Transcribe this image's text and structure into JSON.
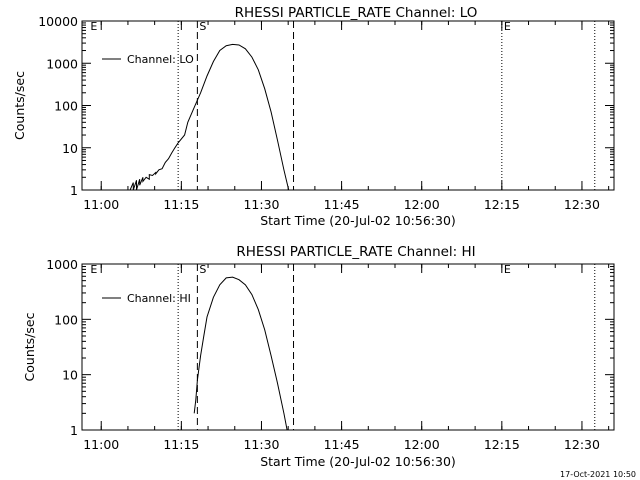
{
  "chart_data": [
    {
      "type": "line",
      "title": "RHESSI PARTICLE_RATE Channel: LO",
      "xlabel": "Start Time (20-Jul-02 10:56:30)",
      "ylabel": "Counts/sec",
      "yscale": "log",
      "ylim": [
        1,
        10000
      ],
      "xlim": [
        10.94,
        12.6
      ],
      "xticks": [
        11.0,
        11.25,
        11.5,
        11.75,
        12.0,
        12.25,
        12.5
      ],
      "xtick_labels": [
        "11:00",
        "11:15",
        "11:30",
        "11:45",
        "12:00",
        "12:15",
        "12:30"
      ],
      "yticks": [
        1,
        10,
        100,
        1000,
        10000
      ],
      "ytick_labels": [
        "1",
        "10",
        "100",
        "1000",
        "10000"
      ],
      "legend": "Channel: LO",
      "series": [
        {
          "name": "Channel: LO",
          "x": [
            11.09,
            11.1,
            11.1,
            11.11,
            11.11,
            11.12,
            11.12,
            11.13,
            11.13,
            11.14,
            11.15,
            11.15,
            11.16,
            11.17,
            11.17,
            11.18,
            11.19,
            11.2,
            11.21,
            11.22,
            11.23,
            11.24,
            11.26,
            11.27,
            11.29,
            11.31,
            11.33,
            11.35,
            11.37,
            11.39,
            11.41,
            11.43,
            11.45,
            11.47,
            11.49,
            11.51,
            11.53,
            11.55,
            11.57,
            11.585
          ],
          "y": [
            1,
            1.5,
            1,
            1.7,
            1,
            1.8,
            1.3,
            2.0,
            1.6,
            2.0,
            1.8,
            2.3,
            2.2,
            2.6,
            2.4,
            3.0,
            3.2,
            4.5,
            5.5,
            7.5,
            10,
            13,
            20,
            40,
            90,
            200,
            500,
            1100,
            2000,
            2600,
            2800,
            2700,
            2200,
            1400,
            700,
            250,
            70,
            15,
            3,
            1
          ]
        }
      ],
      "vlines_dotted": [
        11.24,
        12.25,
        12.54
      ],
      "vlines_dashed": [
        11.3,
        11.6
      ],
      "markers": [
        {
          "label": "E",
          "x": 10.96
        },
        {
          "label": "S",
          "x": 11.3
        },
        {
          "label": "E",
          "x": 12.25
        }
      ]
    },
    {
      "type": "line",
      "title": "RHESSI PARTICLE_RATE Channel: HI",
      "xlabel": "Start Time (20-Jul-02 10:56:30)",
      "ylabel": "Counts/sec",
      "yscale": "log",
      "ylim": [
        1,
        1000
      ],
      "xlim": [
        10.94,
        12.6
      ],
      "xticks": [
        11.0,
        11.25,
        11.5,
        11.75,
        12.0,
        12.25,
        12.5
      ],
      "xtick_labels": [
        "11:00",
        "11:15",
        "11:30",
        "11:45",
        "12:00",
        "12:15",
        "12:30"
      ],
      "yticks": [
        1,
        10,
        100,
        1000
      ],
      "ytick_labels": [
        "1",
        "10",
        "100",
        "1000"
      ],
      "legend": "Channel: HI",
      "series": [
        {
          "name": "Channel: HI",
          "x": [
            11.29,
            11.295,
            11.3,
            11.31,
            11.32,
            11.33,
            11.35,
            11.37,
            11.39,
            11.41,
            11.43,
            11.45,
            11.47,
            11.49,
            11.51,
            11.53,
            11.55,
            11.57,
            11.58
          ],
          "y": [
            2,
            3.5,
            8,
            22,
            50,
            110,
            250,
            420,
            560,
            580,
            520,
            420,
            280,
            150,
            65,
            22,
            7,
            2,
            1
          ]
        }
      ],
      "vlines_dotted": [
        11.24,
        12.54
      ],
      "vlines_dashed": [
        11.3,
        11.6
      ],
      "markers": [
        {
          "label": "E",
          "x": 10.96
        },
        {
          "label": "S",
          "x": 11.3
        },
        {
          "label": "E",
          "x": 12.25
        }
      ]
    }
  ],
  "footer": {
    "timestamp": "17-Oct-2021 10:50"
  }
}
